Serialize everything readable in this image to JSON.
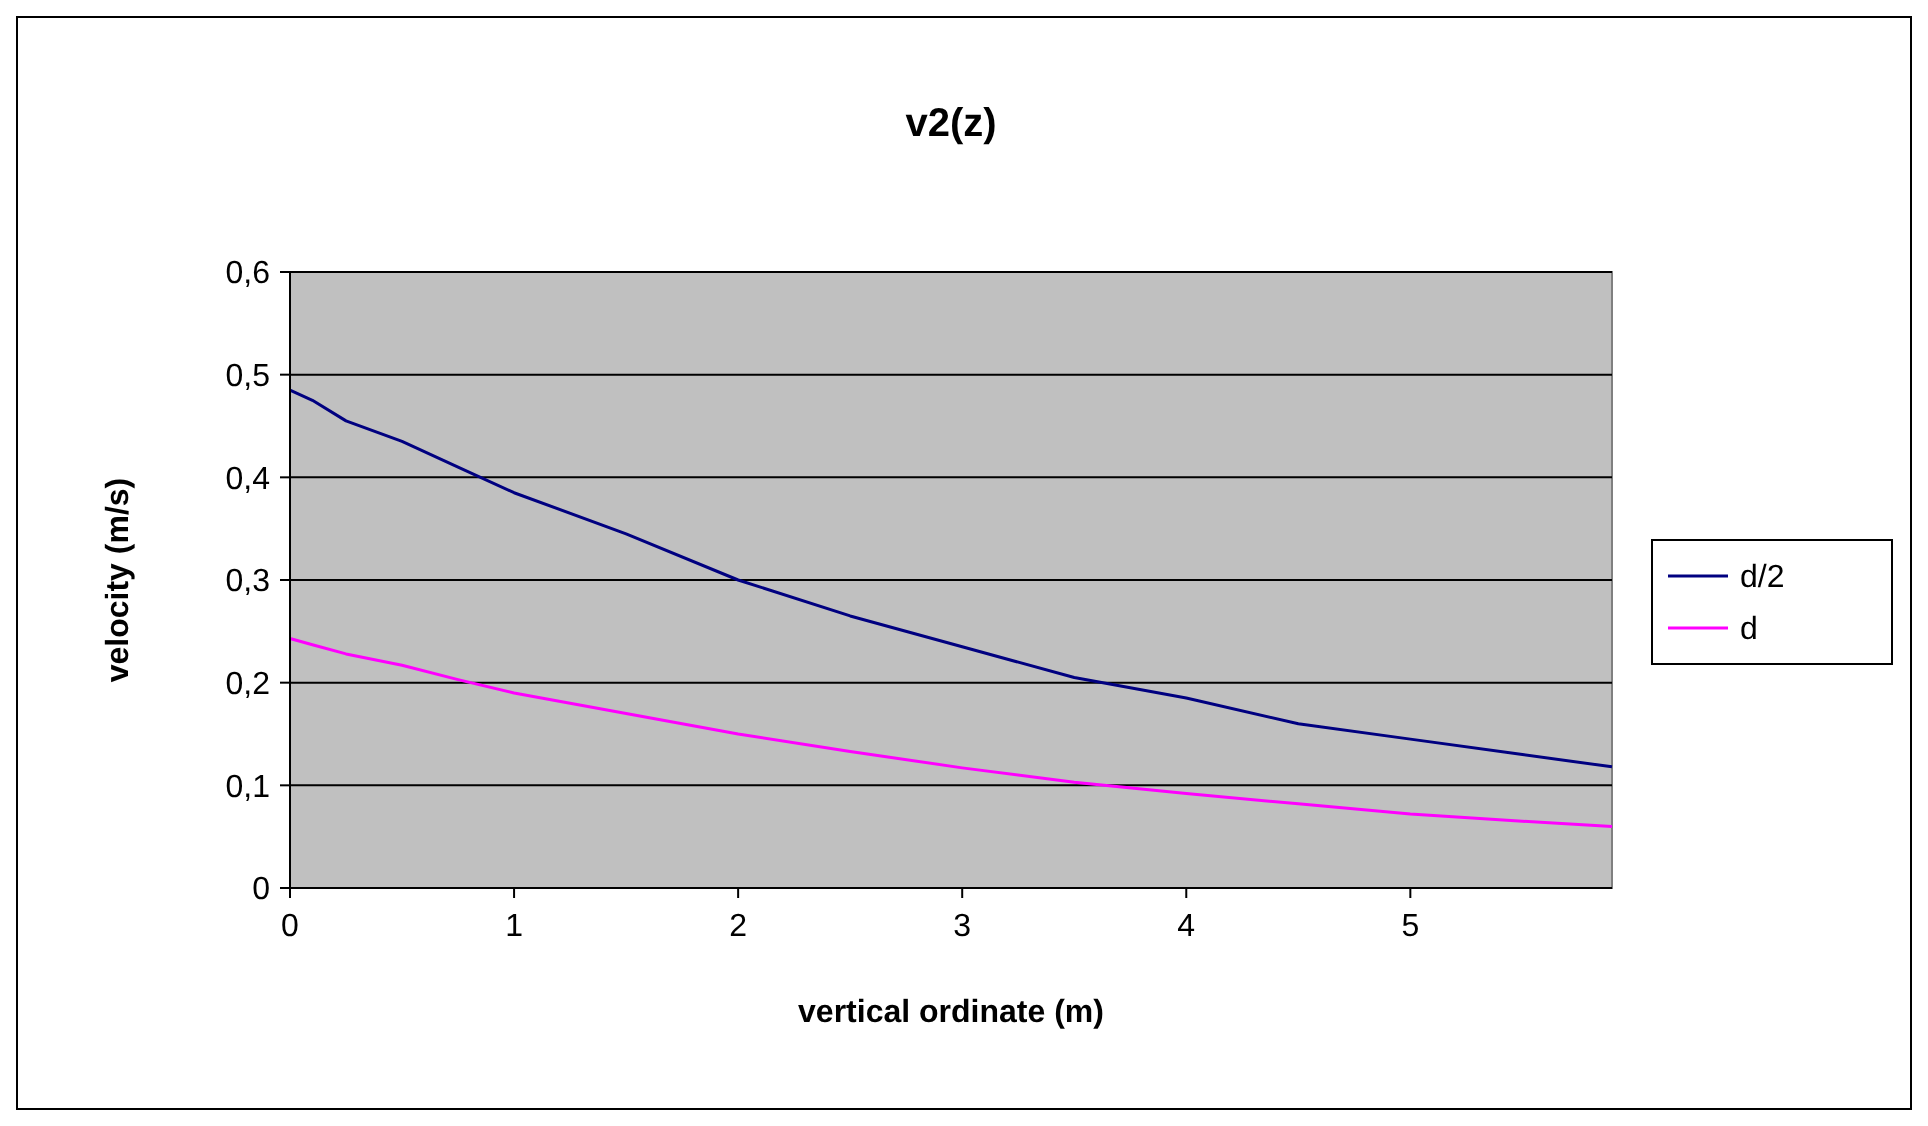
{
  "chart_data": {
    "type": "line",
    "title": "v2(z)",
    "xlabel": "vertical ordinate (m)",
    "ylabel": "velocity (m/s)",
    "xlim": [
      0,
      5.9
    ],
    "xticks": [
      0,
      1,
      2,
      3,
      4,
      5
    ],
    "ylim": [
      0,
      0.6
    ],
    "yticks": [
      0,
      {
        "value": 0.1,
        "label": "0,1"
      },
      {
        "value": 0.2,
        "label": "0,2"
      },
      {
        "value": 0.3,
        "label": "0,3"
      },
      {
        "value": 0.4,
        "label": "0,4"
      },
      {
        "value": 0.5,
        "label": "0,5"
      },
      {
        "value": 0.6,
        "label": "0,6"
      }
    ],
    "grid": "y",
    "legend": "right",
    "marker": "none",
    "series": [
      {
        "name": "d/2",
        "color": "#000080",
        "x": [
          0,
          0.1,
          0.25,
          0.5,
          0.75,
          1,
          1.5,
          2,
          2.5,
          3,
          3.5,
          4,
          4.5,
          5,
          5.5,
          5.9
        ],
        "values": [
          0.485,
          0.475,
          0.455,
          0.435,
          0.41,
          0.385,
          0.345,
          0.3,
          0.265,
          0.235,
          0.205,
          0.185,
          0.16,
          0.145,
          0.13,
          0.118
        ]
      },
      {
        "name": "d",
        "color": "#ff00ff",
        "x": [
          0,
          0.1,
          0.25,
          0.5,
          0.75,
          1,
          1.5,
          2,
          2.5,
          3,
          3.5,
          4,
          4.5,
          5,
          5.5,
          5.9
        ],
        "values": [
          0.243,
          0.237,
          0.228,
          0.217,
          0.203,
          0.19,
          0.17,
          0.15,
          0.133,
          0.117,
          0.103,
          0.092,
          0.082,
          0.072,
          0.065,
          0.06
        ]
      }
    ]
  }
}
